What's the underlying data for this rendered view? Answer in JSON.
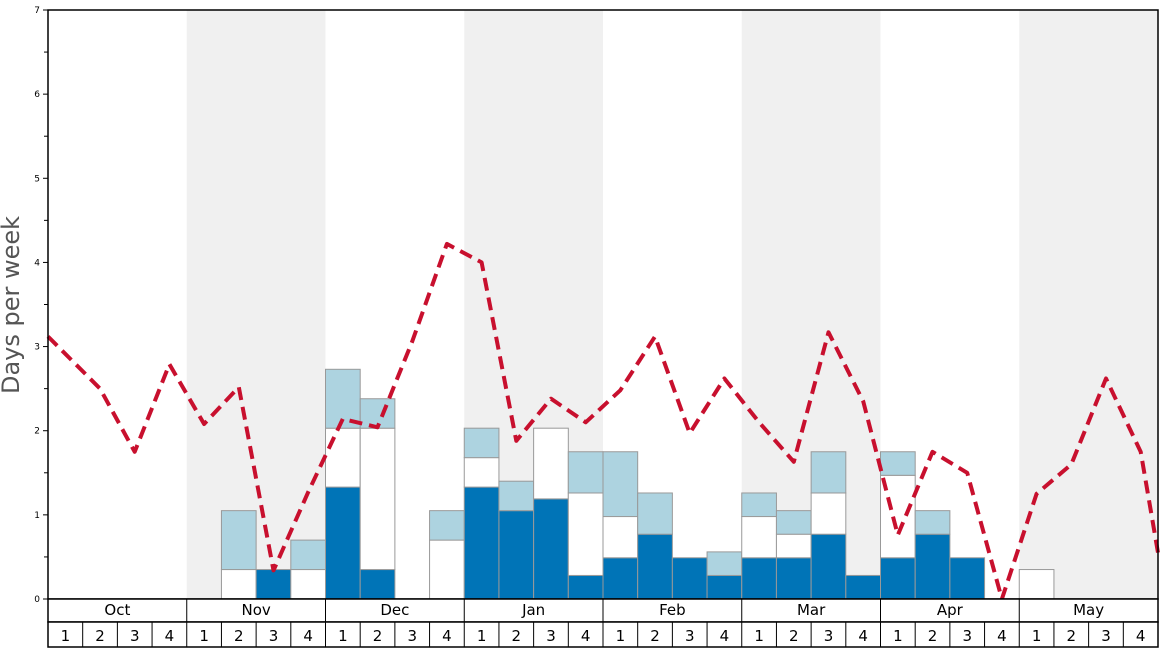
{
  "chart_data": {
    "type": "bar",
    "ylabel": "Days per week",
    "ylim": [
      0,
      7
    ],
    "y_ticks": [
      "0",
      "1",
      "2",
      "3",
      "4",
      "5",
      "6",
      "7"
    ],
    "months": [
      "Oct",
      "Nov",
      "Dec",
      "Jan",
      "Feb",
      "Mar",
      "Apr",
      "May"
    ],
    "weeks": [
      "1",
      "2",
      "3",
      "4"
    ],
    "grid": false,
    "legend": "none",
    "colors": {
      "dark": "#0074b7",
      "white": "#ffffff",
      "light": "#add3e0",
      "line": "#c8102e",
      "band": "#f0f0f0",
      "bar_stroke": "#999999"
    },
    "series": [
      {
        "values": [
          0,
          0,
          0,
          0,
          0,
          0,
          0.35,
          0,
          1.33,
          0.35,
          0,
          0,
          1.33,
          1.05,
          1.19,
          0.28,
          0.49,
          0.77,
          0.49,
          0.28,
          0.49,
          0.49,
          0.77,
          0.28,
          0.49,
          0.77,
          0.49,
          0,
          0,
          0,
          0,
          0
        ]
      },
      {
        "values": [
          0,
          0,
          0,
          0,
          0,
          0.35,
          0,
          0.35,
          0.7,
          1.68,
          0,
          0.7,
          0.35,
          0,
          0.84,
          0.98,
          0.49,
          0,
          0,
          0,
          0.49,
          0.28,
          0.49,
          0,
          0.98,
          0,
          0,
          0,
          0.35,
          0,
          0,
          0
        ]
      },
      {
        "values": [
          0,
          0,
          0,
          0,
          0,
          0.7,
          0,
          0.35,
          0.7,
          0.35,
          0,
          0.35,
          0.35,
          0.35,
          0,
          0.49,
          0.77,
          0.49,
          0,
          0.28,
          0.28,
          0.28,
          0.49,
          0,
          0.28,
          0.28,
          0,
          0,
          0,
          0,
          0,
          0
        ]
      },
      {
        "values": [
          3.12,
          2.5,
          1.75,
          2.79,
          2.08,
          2.52,
          0.34,
          1.27,
          2.14,
          2.04,
          3.06,
          4.22,
          4.0,
          1.88,
          2.38,
          2.1,
          2.48,
          3.12,
          1.97,
          2.62,
          2.1,
          1.63,
          3.17,
          2.35,
          0.76,
          1.75,
          1.5,
          0,
          1.25,
          1.6,
          2.62,
          1.75
        ]
      }
    ]
  }
}
